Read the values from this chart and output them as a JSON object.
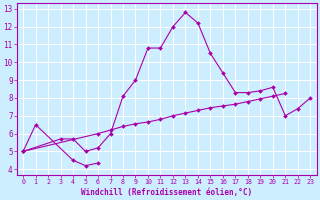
{
  "xlabel": "Windchill (Refroidissement éolien,°C)",
  "xlim": [
    -0.5,
    23.5
  ],
  "ylim": [
    3.7,
    13.3
  ],
  "xticks": [
    0,
    1,
    2,
    3,
    4,
    5,
    6,
    7,
    8,
    9,
    10,
    11,
    12,
    13,
    14,
    15,
    16,
    17,
    18,
    19,
    20,
    21,
    22,
    23
  ],
  "yticks": [
    4,
    5,
    6,
    7,
    8,
    9,
    10,
    11,
    12,
    13
  ],
  "line_color": "#aa00aa",
  "bg_color": "#cceeff",
  "grid_color": "#ffffff",
  "curves": [
    {
      "x": [
        0,
        1,
        4,
        5,
        6
      ],
      "y": [
        5.0,
        6.5,
        4.5,
        4.2,
        4.35
      ]
    },
    {
      "x": [
        0,
        3,
        4,
        5,
        6,
        7,
        8,
        9,
        10,
        11,
        12,
        13,
        14,
        15,
        16,
        17,
        18,
        19,
        20,
        21,
        22,
        23
      ],
      "y": [
        5.0,
        5.7,
        5.7,
        5.0,
        5.2,
        6.0,
        8.1,
        9.0,
        10.8,
        10.8,
        12.0,
        12.8,
        12.2,
        10.5,
        9.4,
        8.3,
        8.3,
        8.4,
        8.6,
        7.0,
        7.4,
        8.0
      ]
    },
    {
      "x": [
        0,
        6,
        7,
        8,
        9,
        10,
        11,
        12,
        13,
        14,
        15,
        16,
        17,
        18,
        19,
        20,
        21
      ],
      "y": [
        5.0,
        6.0,
        6.2,
        6.4,
        6.55,
        6.65,
        6.8,
        7.0,
        7.15,
        7.3,
        7.45,
        7.55,
        7.65,
        7.8,
        7.95,
        8.1,
        8.25
      ]
    }
  ]
}
